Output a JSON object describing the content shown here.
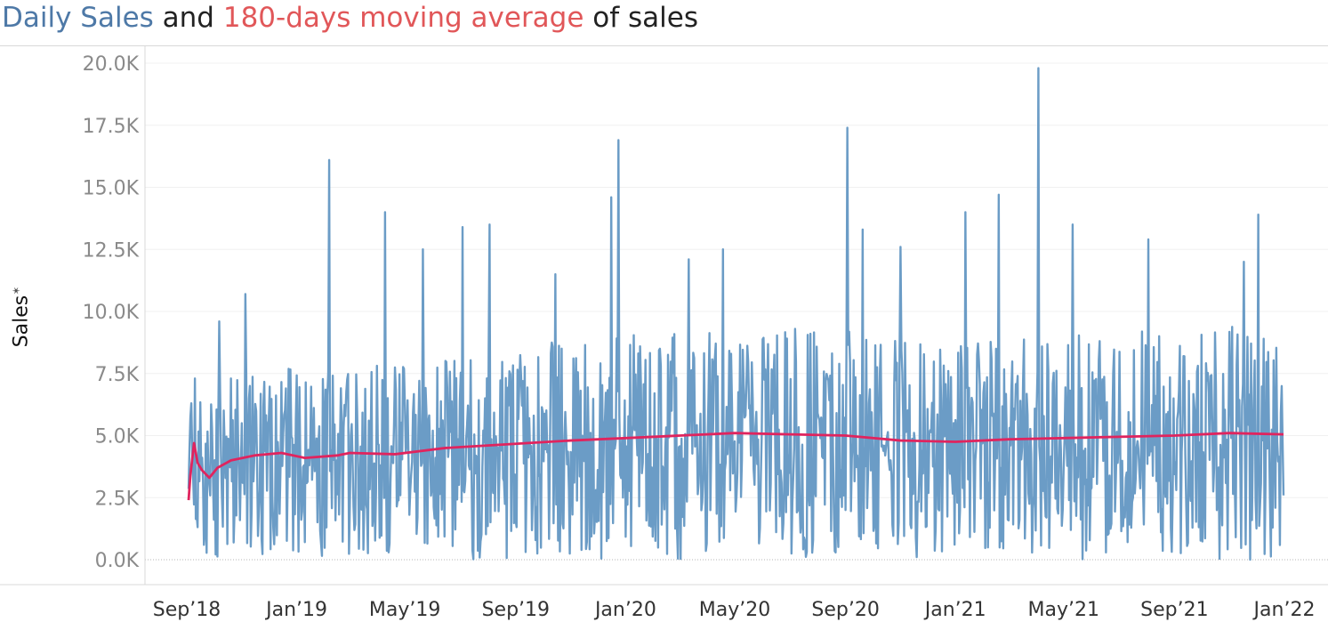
{
  "title": {
    "part1": "Daily Sales",
    "part2": " and ",
    "part3": "180-days moving average",
    "part4": " of sales"
  },
  "colors": {
    "sales": "#6b9cc6",
    "moving_average": "#e0245e",
    "title_blue": "#4e79a7",
    "title_red": "#e15759"
  },
  "chart_data": {
    "type": "line",
    "ylabel": "Sales",
    "ylabel_marker": "✶",
    "ylim": [
      0,
      20000
    ],
    "y_ticks": [
      {
        "value": 0,
        "label": "0.0K"
      },
      {
        "value": 2500,
        "label": "2.5K"
      },
      {
        "value": 5000,
        "label": "5.0K"
      },
      {
        "value": 7500,
        "label": "7.5K"
      },
      {
        "value": 10000,
        "label": "10.0K"
      },
      {
        "value": 12500,
        "label": "12.5K"
      },
      {
        "value": 15000,
        "label": "15.0K"
      },
      {
        "value": 17500,
        "label": "17.5K"
      },
      {
        "value": 20000,
        "label": "20.0K"
      }
    ],
    "x_ticks": [
      {
        "date": "2018-09-01",
        "label": "Sep’18"
      },
      {
        "date": "2019-01-01",
        "label": "Jan’19"
      },
      {
        "date": "2019-05-01",
        "label": "May’19"
      },
      {
        "date": "2019-09-01",
        "label": "Sep’19"
      },
      {
        "date": "2020-01-01",
        "label": "Jan’20"
      },
      {
        "date": "2020-05-01",
        "label": "May’20"
      },
      {
        "date": "2020-09-01",
        "label": "Sep’20"
      },
      {
        "date": "2021-01-01",
        "label": "Jan’21"
      },
      {
        "date": "2021-05-01",
        "label": "May’21"
      },
      {
        "date": "2021-09-01",
        "label": "Sep’21"
      },
      {
        "date": "2022-01-01",
        "label": "Jan’22"
      }
    ],
    "series": [
      {
        "key": "daily_sales",
        "date_range": [
          "2018-09-03",
          "2021-12-31"
        ],
        "spikes": [
          {
            "date": "2018-09-06",
            "value": 6300
          },
          {
            "date": "2018-09-10",
            "value": 7300
          },
          {
            "date": "2018-10-07",
            "value": 9600
          },
          {
            "date": "2018-11-05",
            "value": 10700
          },
          {
            "date": "2019-02-06",
            "value": 16100
          },
          {
            "date": "2019-04-09",
            "value": 14000
          },
          {
            "date": "2019-05-21",
            "value": 12500
          },
          {
            "date": "2019-07-04",
            "value": 13400
          },
          {
            "date": "2019-08-03",
            "value": 13500
          },
          {
            "date": "2019-10-15",
            "value": 11500
          },
          {
            "date": "2019-12-16",
            "value": 14600
          },
          {
            "date": "2019-12-24",
            "value": 16900
          },
          {
            "date": "2020-03-11",
            "value": 12100
          },
          {
            "date": "2020-04-18",
            "value": 12500
          },
          {
            "date": "2020-09-03",
            "value": 17400
          },
          {
            "date": "2020-09-20",
            "value": 13300
          },
          {
            "date": "2020-11-01",
            "value": 12600
          },
          {
            "date": "2021-01-12",
            "value": 14000
          },
          {
            "date": "2021-02-18",
            "value": 14700
          },
          {
            "date": "2021-04-03",
            "value": 19800
          },
          {
            "date": "2021-05-11",
            "value": 13500
          },
          {
            "date": "2021-08-03",
            "value": 12900
          },
          {
            "date": "2021-11-17",
            "value": 12000
          },
          {
            "date": "2021-12-03",
            "value": 13900
          }
        ],
        "range_low": 0,
        "typical_high": 9000
      },
      {
        "key": "moving_average_180d",
        "points": [
          {
            "date": "2018-09-03",
            "value": 2400
          },
          {
            "date": "2018-09-05",
            "value": 3400
          },
          {
            "date": "2018-09-09",
            "value": 4700
          },
          {
            "date": "2018-09-13",
            "value": 3900
          },
          {
            "date": "2018-09-18",
            "value": 3600
          },
          {
            "date": "2018-09-26",
            "value": 3300
          },
          {
            "date": "2018-10-05",
            "value": 3700
          },
          {
            "date": "2018-10-20",
            "value": 4000
          },
          {
            "date": "2018-11-15",
            "value": 4200
          },
          {
            "date": "2018-12-15",
            "value": 4300
          },
          {
            "date": "2019-01-10",
            "value": 4100
          },
          {
            "date": "2019-02-15",
            "value": 4200
          },
          {
            "date": "2019-03-01",
            "value": 4300
          },
          {
            "date": "2019-04-20",
            "value": 4250
          },
          {
            "date": "2019-06-15",
            "value": 4500
          },
          {
            "date": "2019-08-01",
            "value": 4600
          },
          {
            "date": "2019-09-15",
            "value": 4700
          },
          {
            "date": "2019-11-01",
            "value": 4800
          },
          {
            "date": "2020-01-01",
            "value": 4900
          },
          {
            "date": "2020-03-01",
            "value": 5000
          },
          {
            "date": "2020-05-01",
            "value": 5100
          },
          {
            "date": "2020-07-01",
            "value": 5050
          },
          {
            "date": "2020-09-01",
            "value": 5000
          },
          {
            "date": "2020-11-01",
            "value": 4800
          },
          {
            "date": "2021-01-01",
            "value": 4750
          },
          {
            "date": "2021-03-01",
            "value": 4850
          },
          {
            "date": "2021-05-01",
            "value": 4900
          },
          {
            "date": "2021-07-01",
            "value": 4950
          },
          {
            "date": "2021-09-01",
            "value": 5000
          },
          {
            "date": "2021-11-01",
            "value": 5100
          },
          {
            "date": "2021-12-31",
            "value": 5050
          }
        ]
      }
    ]
  }
}
